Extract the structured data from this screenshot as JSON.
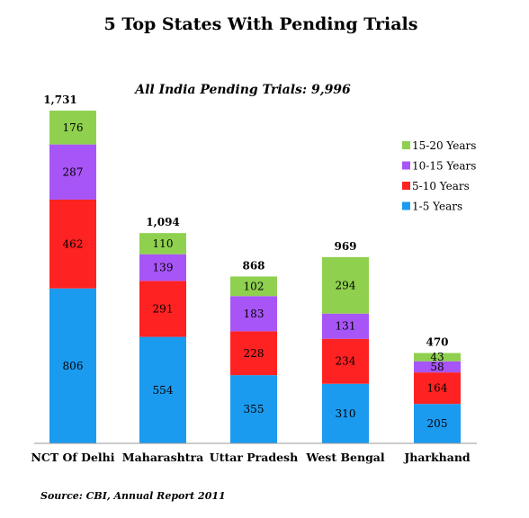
{
  "chart_data": {
    "type": "bar",
    "stacked": true,
    "title": "5 Top States With Pending Trials",
    "subtitle": "All India Pending Trials: 9,996",
    "source": "Source: CBI, Annual Report 2011",
    "categories": [
      "NCT Of Delhi",
      "Maharashtra",
      "Uttar Pradesh",
      "West Bengal",
      "Jharkhand"
    ],
    "totals": [
      "1,731",
      "1,094",
      "868",
      "969",
      "470"
    ],
    "series": [
      {
        "name": "1-5 Years",
        "color": "#1a9bf0",
        "values": [
          806,
          554,
          355,
          310,
          205
        ]
      },
      {
        "name": "5-10 Years",
        "color": "#ff2222",
        "values": [
          462,
          291,
          228,
          234,
          164
        ]
      },
      {
        "name": "10-15 Years",
        "color": "#a855f7",
        "values": [
          287,
          139,
          183,
          131,
          58
        ]
      },
      {
        "name": "15-20 Years",
        "color": "#8fd14f",
        "values": [
          176,
          110,
          102,
          294,
          43
        ]
      }
    ],
    "legend_order": [
      3,
      2,
      1,
      0
    ],
    "legend_position": "right",
    "grid": false,
    "ylim": [
      0,
      1731
    ]
  }
}
